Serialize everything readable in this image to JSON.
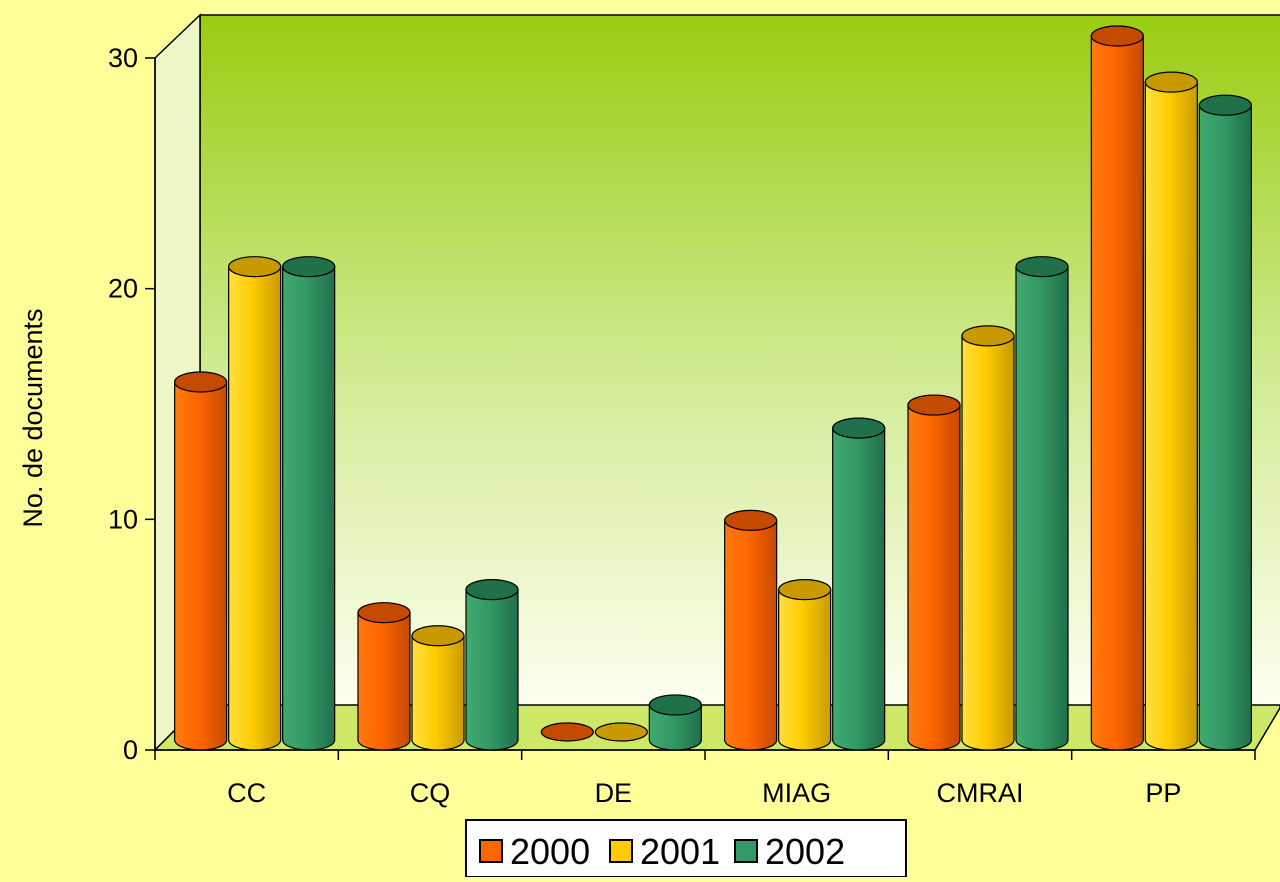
{
  "chart_data": {
    "type": "bar",
    "categories": [
      "CC",
      "CQ",
      "DE",
      "MIAG",
      "CMRAI",
      "PP"
    ],
    "series": [
      {
        "name": "2000",
        "values": [
          15,
          5,
          0,
          9,
          14,
          30
        ]
      },
      {
        "name": "2001",
        "values": [
          20,
          4,
          0,
          6,
          17,
          28
        ]
      },
      {
        "name": "2002",
        "values": [
          20,
          6,
          1,
          13,
          20,
          27
        ]
      }
    ],
    "title": "",
    "xlabel": "",
    "ylabel": "No. de documents",
    "ylim": [
      0,
      30
    ],
    "yticks": [
      0,
      10,
      20,
      30
    ],
    "grid": false,
    "legend_position": "bottom",
    "colors": {
      "2000": "#ff6600",
      "2001": "#ffcc00",
      "2002": "#339966",
      "background": "#ffff99",
      "wall_top": "#99cc11",
      "floor": "#ccee66"
    }
  }
}
